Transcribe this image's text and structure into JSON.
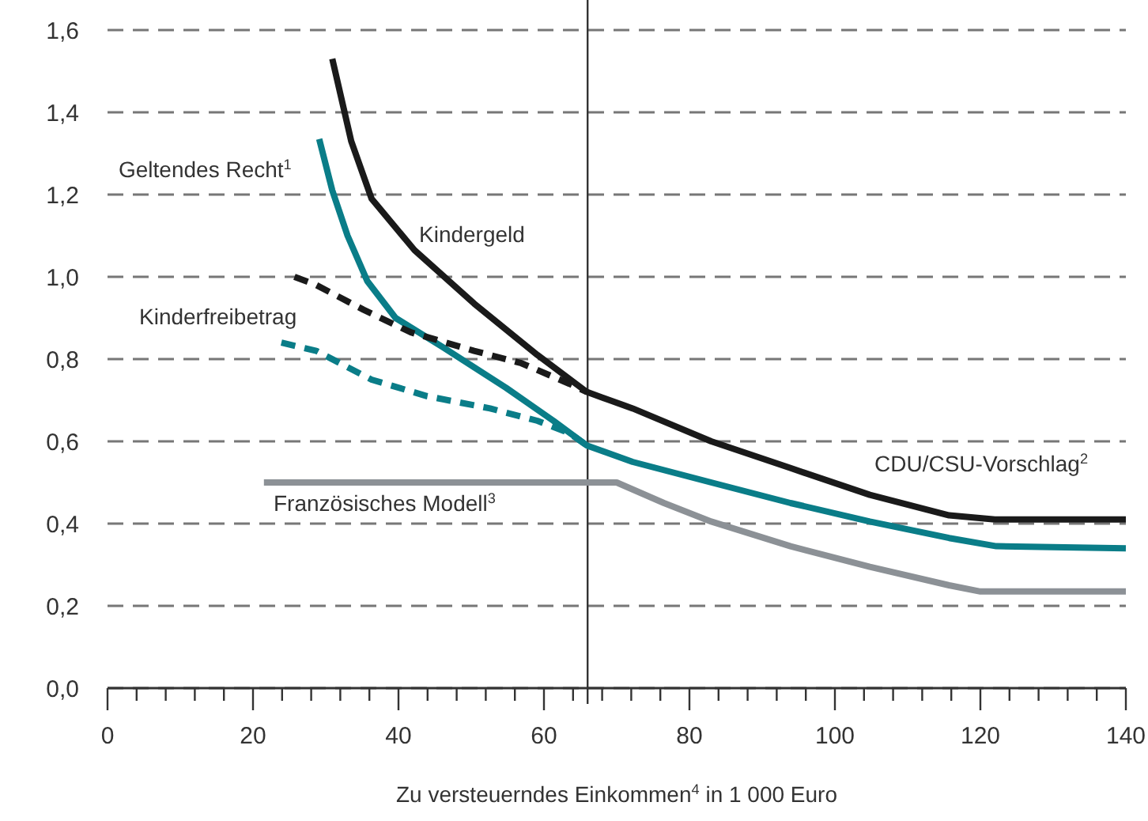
{
  "chart_data": {
    "type": "line",
    "xlabel": "Zu versteuerndes Einkommen$^{4}$ in 1 000 Euro",
    "xlim": [
      0,
      140
    ],
    "ylim": [
      0,
      1.6
    ],
    "xticks": [
      0,
      {
        "value": 4,
        "label": null
      },
      {
        "value": 8,
        "label": null
      },
      {
        "value": 12,
        "label": null
      },
      {
        "value": 16,
        "label": null
      },
      20,
      {
        "value": 24,
        "label": null
      },
      {
        "value": 28,
        "label": null
      },
      {
        "value": 32,
        "label": null
      },
      {
        "value": 36,
        "label": null
      },
      40,
      {
        "value": 44,
        "label": null
      },
      {
        "value": 48,
        "label": null
      },
      {
        "value": 52,
        "label": null
      },
      {
        "value": 56,
        "label": null
      },
      60,
      {
        "value": 64,
        "label": null
      },
      {
        "value": 68,
        "label": null
      },
      {
        "value": 72,
        "label": null
      },
      {
        "value": 76,
        "label": null
      },
      80,
      {
        "value": 84,
        "label": null
      },
      {
        "value": 88,
        "label": null
      },
      {
        "value": 92,
        "label": null
      },
      {
        "value": 96,
        "label": null
      },
      100,
      {
        "value": 104,
        "label": null
      },
      {
        "value": 108,
        "label": null
      },
      {
        "value": 112,
        "label": null
      },
      {
        "value": 116,
        "label": null
      },
      120,
      {
        "value": 124,
        "label": null
      },
      {
        "value": 128,
        "label": null
      },
      {
        "value": 132,
        "label": null
      },
      {
        "value": 136,
        "label": null
      },
      140
    ],
    "yticks": [
      {
        "value": 0,
        "label": "0,0"
      },
      {
        "value": 0.2,
        "label": "0,2"
      },
      {
        "value": 0.4,
        "label": "0,4"
      },
      {
        "value": 0.6,
        "label": "0,6"
      },
      {
        "value": 0.8,
        "label": "0,8"
      },
      {
        "value": 1.0,
        "label": "1,0"
      },
      {
        "value": 1.2,
        "label": "1,2"
      },
      {
        "value": 1.4,
        "label": "1,4"
      },
      {
        "value": 1.6,
        "label": "1,6"
      }
    ],
    "grid": "y",
    "marker": "none",
    "ref_lines": [
      {
        "axis": "x",
        "value": 66,
        "color": "#333333"
      }
    ],
    "series": [
      {
        "color": "#1a1a1a",
        "line_style": "solid",
        "x": [
          30.9,
          33.5,
          36.3,
          42.2,
          50.4,
          59.1,
          65.9,
          72.2,
          83,
          93.9,
          104.8,
          115.7,
          122,
          140
        ],
        "values": [
          1.53,
          1.33,
          1.19,
          1.065,
          0.935,
          0.81,
          0.72,
          0.68,
          0.6,
          0.535,
          0.47,
          0.42,
          0.41,
          0.41
        ]
      },
      {
        "color": "#0a7d88",
        "line_style": "solid",
        "x": [
          29.1,
          30.9,
          33,
          35.7,
          39.6,
          46,
          54.8,
          61.3,
          65.9,
          72.2,
          83,
          93.9,
          104.8,
          115.7,
          122.2,
          140
        ],
        "values": [
          1.335,
          1.21,
          1.1,
          0.99,
          0.9,
          0.83,
          0.73,
          0.65,
          0.59,
          0.55,
          0.5,
          0.45,
          0.405,
          0.365,
          0.345,
          0.34
        ]
      },
      {
        "color": "#1a1a1a",
        "line_style": "dashed",
        "x": [
          25.7,
          28.7,
          35.2,
          41.7,
          50.4,
          56.9,
          63.5,
          65.9
        ],
        "values": [
          1.0,
          0.98,
          0.92,
          0.865,
          0.82,
          0.79,
          0.74,
          0.72
        ]
      },
      {
        "color": "#0a7d88",
        "line_style": "dashed",
        "x": [
          23.9,
          28.7,
          36.3,
          43.9,
          52.6,
          59.1,
          63.5,
          65.9
        ],
        "values": [
          0.84,
          0.82,
          0.75,
          0.71,
          0.68,
          0.65,
          0.62,
          0.59
        ]
      },
      {
        "color": "#8c9196",
        "line_style": "solid",
        "x": [
          21.5,
          70,
          76.5,
          83,
          93.9,
          104.8,
          115.7,
          120,
          140
        ],
        "values": [
          0.5,
          0.5,
          0.45,
          0.405,
          0.345,
          0.295,
          0.25,
          0.235,
          0.235
        ]
      }
    ],
    "annotations": [
      "Geltendes Recht$^{1}$",
      "Kindergeld",
      "Kinderfreibetrag",
      "CDU/CSU-Vorschlag$^{2}$",
      "Französisches Modell$^{3}$"
    ]
  }
}
